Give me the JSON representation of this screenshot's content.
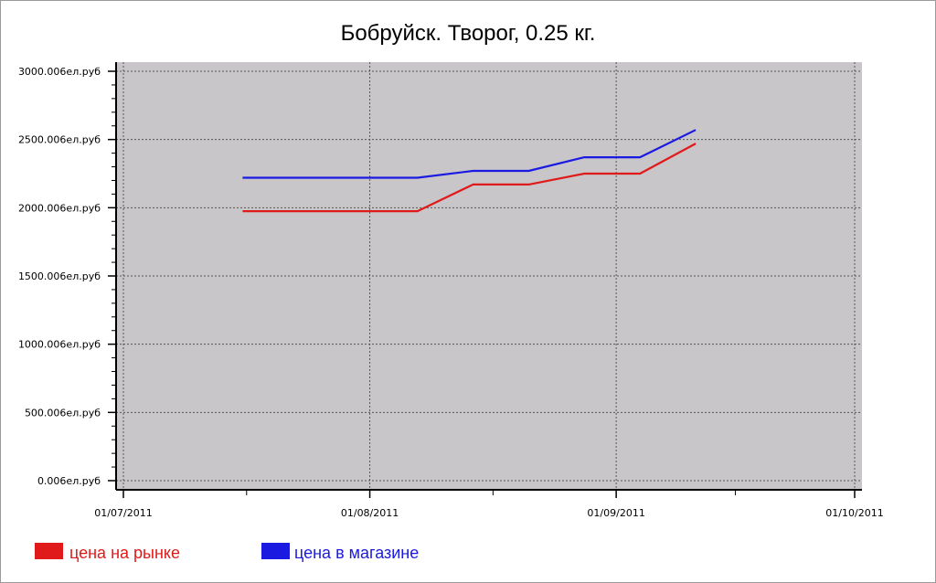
{
  "chart_data": {
    "type": "line",
    "title": "Бобруйск. Творог, 0.25 кг.",
    "xlabel": "",
    "ylabel": "",
    "x_axis": {
      "kind": "date",
      "min": "2011-07-01",
      "max": "2011-10-01",
      "tick_labels": [
        "01/07/2011",
        "01/08/2011",
        "01/09/2011",
        "01/10/2011"
      ],
      "tick_dates": [
        "2011-07-01",
        "2011-08-01",
        "2011-09-01",
        "2011-10-01"
      ]
    },
    "y_axis": {
      "min": 0,
      "max": 3000,
      "ticks": [
        0,
        500,
        1000,
        1500,
        2000,
        2500,
        3000
      ],
      "tick_labels": [
        "0.006ел.руб",
        "500.006ел.руб",
        "1000.006ел.руб",
        "1500.006ел.руб",
        "2000.006ел.руб",
        "2500.006ел.руб",
        "3000.006ел.руб"
      ]
    },
    "grid": true,
    "legend_position": "bottom-left",
    "series": [
      {
        "name": "цена на рынке",
        "color": "#e01a1a",
        "points": [
          {
            "x": "2011-07-16",
            "y": 1975
          },
          {
            "x": "2011-08-07",
            "y": 1975
          },
          {
            "x": "2011-08-14",
            "y": 2170
          },
          {
            "x": "2011-08-21",
            "y": 2170
          },
          {
            "x": "2011-08-28",
            "y": 2250
          },
          {
            "x": "2011-09-04",
            "y": 2250
          },
          {
            "x": "2011-09-11",
            "y": 2470
          }
        ]
      },
      {
        "name": "цена в магазине",
        "color": "#1a1ae0",
        "points": [
          {
            "x": "2011-07-16",
            "y": 2220
          },
          {
            "x": "2011-08-07",
            "y": 2220
          },
          {
            "x": "2011-08-14",
            "y": 2270
          },
          {
            "x": "2011-08-21",
            "y": 2270
          },
          {
            "x": "2011-08-28",
            "y": 2370
          },
          {
            "x": "2011-09-04",
            "y": 2370
          },
          {
            "x": "2011-09-11",
            "y": 2570
          }
        ]
      }
    ]
  },
  "colors": {
    "plot_background": "#c8c6c9",
    "grid": "#555555",
    "axis": "#000000"
  }
}
